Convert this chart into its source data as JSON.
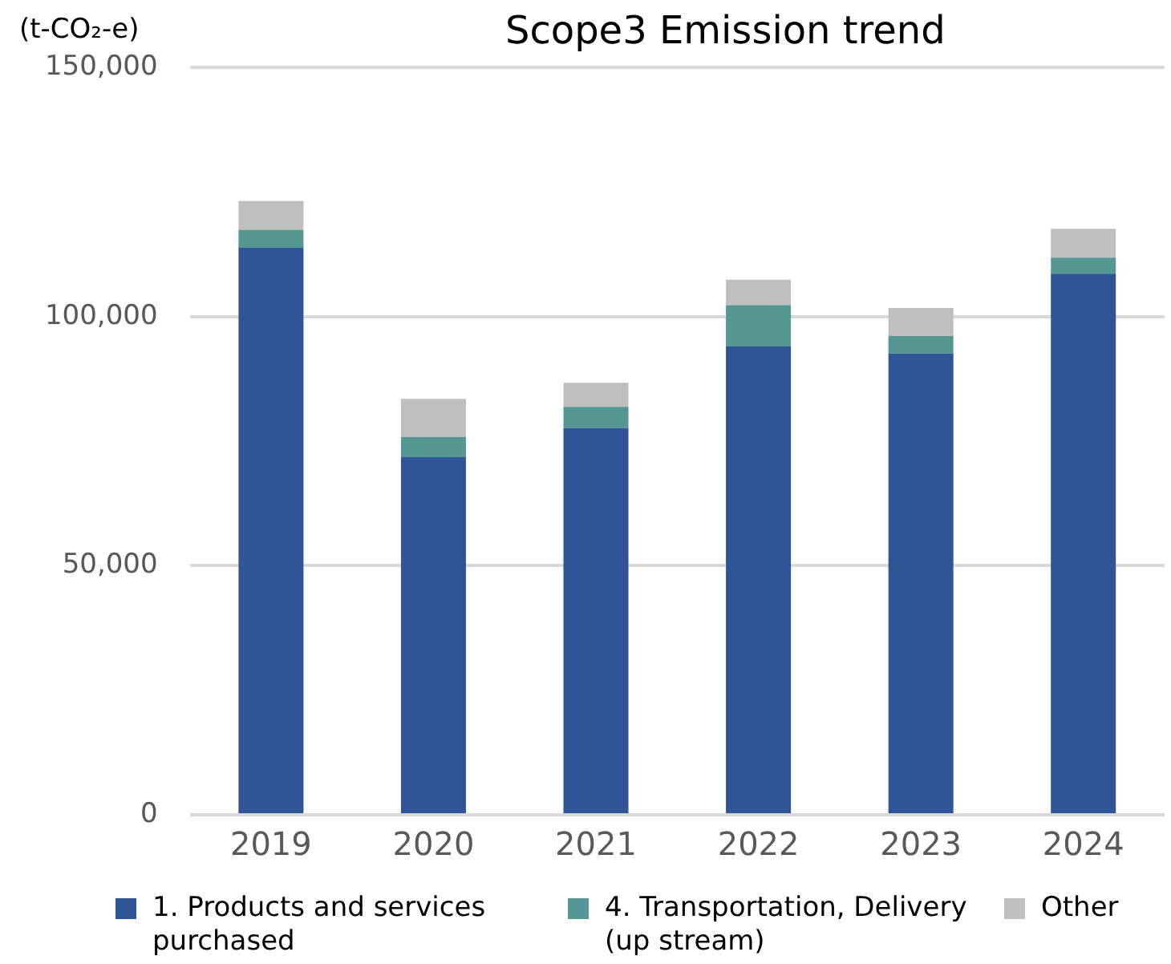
{
  "chart_data": {
    "type": "bar",
    "title": "Scope3 Emission trend",
    "ylabel": "(t-CO₂-e)",
    "categories": [
      "2019",
      "2020",
      "2021",
      "2022",
      "2023",
      "2024"
    ],
    "stacked": true,
    "series": [
      {
        "name": "1. Products and services purchased",
        "color": "#2f5597",
        "values": [
          113800,
          71800,
          77600,
          94000,
          92600,
          108600
        ]
      },
      {
        "name": "4. Transportation, Delivery (up stream)",
        "color": "#559893",
        "values": [
          3600,
          4000,
          4300,
          8300,
          3500,
          3200
        ]
      },
      {
        "name": "Other",
        "color": "#bfbfbf",
        "values": [
          5800,
          7700,
          4800,
          5100,
          5600,
          5800
        ]
      }
    ],
    "ylim": [
      0,
      150000
    ],
    "yticks": [
      0,
      {
        "value": 50000,
        "label": "50,000"
      },
      {
        "value": 100000,
        "label": "100,000"
      },
      {
        "value": 150000,
        "label": "150,000"
      }
    ],
    "grid": "y",
    "legend": "bottom"
  }
}
